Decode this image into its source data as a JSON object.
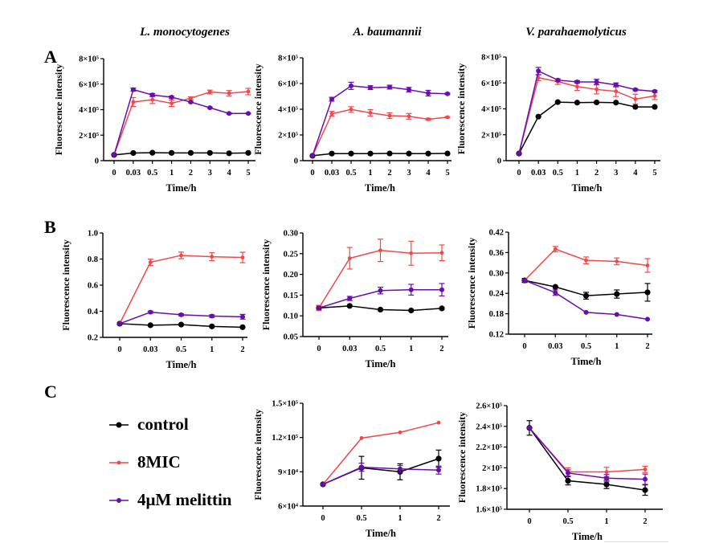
{
  "column_titles": [
    "L. monocytogenes",
    "A. baumannii",
    "V. parahaemolyticus"
  ],
  "panel_letters": [
    "A",
    "B",
    "C"
  ],
  "legend": [
    {
      "label": "control",
      "color": "#000000"
    },
    {
      "label": "8MIC",
      "color": "#F04848"
    },
    {
      "label": "4μM melittin",
      "color": "#6A0DAD"
    }
  ],
  "chart_data": [
    {
      "id": "A1",
      "type": "line",
      "title": "L. monocytogenes",
      "xlabel": "Time/h",
      "ylabel": "Fluorescence intensity",
      "categories": [
        "0",
        "0.03",
        "0.5",
        "1",
        "2",
        "3",
        "4",
        "5"
      ],
      "ylim": [
        0,
        800000
      ],
      "yticks": [
        {
          "v": 0,
          "label": "0"
        },
        {
          "v": 200000,
          "label": "2×10⁵"
        },
        {
          "v": 400000,
          "label": "4×10⁵"
        },
        {
          "v": 600000,
          "label": "6×10⁵"
        },
        {
          "v": 800000,
          "label": "8×10⁵"
        }
      ],
      "series": [
        {
          "name": "control",
          "color": "#000000",
          "values": [
            45000,
            60000,
            62000,
            61000,
            61000,
            61000,
            58000,
            61000
          ],
          "errors": [
            0,
            0,
            0,
            0,
            0,
            0,
            0,
            0
          ]
        },
        {
          "name": "8MIC",
          "color": "#F04848",
          "values": [
            45000,
            460000,
            478000,
            450000,
            490000,
            538000,
            528000,
            542000
          ],
          "errors": [
            0,
            35000,
            30000,
            25000,
            10000,
            15000,
            22000,
            25000
          ]
        },
        {
          "name": "4μM melittin",
          "color": "#6A0DAD",
          "values": [
            45000,
            557000,
            515000,
            498000,
            460000,
            415000,
            370000,
            370000
          ],
          "errors": [
            0,
            12000,
            12000,
            8000,
            6000,
            5000,
            5000,
            3000
          ]
        }
      ]
    },
    {
      "id": "A2",
      "type": "line",
      "title": "A. baumannii",
      "xlabel": "Time/h",
      "ylabel": "Fluorescence intensity",
      "categories": [
        "0",
        "0.03",
        "0.5",
        "1",
        "2",
        "3",
        "4",
        "5"
      ],
      "ylim": [
        0,
        800000
      ],
      "yticks": [
        {
          "v": 0,
          "label": "0"
        },
        {
          "v": 200000,
          "label": "2×10⁵"
        },
        {
          "v": 400000,
          "label": "4×10⁵"
        },
        {
          "v": 600000,
          "label": "6×10⁵"
        },
        {
          "v": 800000,
          "label": "8×10⁵"
        }
      ],
      "series": [
        {
          "name": "control",
          "color": "#000000",
          "values": [
            38000,
            55000,
            55000,
            55000,
            56000,
            55000,
            55000,
            56000
          ],
          "errors": [
            0,
            0,
            0,
            0,
            0,
            0,
            0,
            0
          ]
        },
        {
          "name": "8MIC",
          "color": "#F04848",
          "values": [
            38000,
            365000,
            398000,
            372000,
            350000,
            345000,
            322000,
            338000
          ],
          "errors": [
            0,
            18000,
            22000,
            25000,
            22000,
            22000,
            8000,
            5000
          ]
        },
        {
          "name": "4μM melittin",
          "color": "#6A0DAD",
          "values": [
            38000,
            478000,
            582000,
            568000,
            572000,
            552000,
            525000,
            520000
          ],
          "errors": [
            0,
            15000,
            28000,
            15000,
            15000,
            18000,
            22000,
            5000
          ]
        }
      ]
    },
    {
      "id": "A3",
      "type": "line",
      "title": "V. parahaemolyticus",
      "xlabel": "Time/h",
      "ylabel": "Fluorescence intensity",
      "categories": [
        "0",
        "0.03",
        "0.5",
        "1",
        "2",
        "3",
        "4",
        "5"
      ],
      "ylim": [
        0,
        800000
      ],
      "yticks": [
        {
          "v": 0,
          "label": "0"
        },
        {
          "v": 200000,
          "label": "2×10⁵"
        },
        {
          "v": 400000,
          "label": "4×10⁵"
        },
        {
          "v": 600000,
          "label": "6×10⁵"
        },
        {
          "v": 800000,
          "label": "8×10⁵"
        }
      ],
      "series": [
        {
          "name": "control",
          "color": "#000000",
          "values": [
            55000,
            340000,
            452000,
            448000,
            450000,
            448000,
            415000,
            415000
          ],
          "errors": [
            0,
            0,
            0,
            0,
            0,
            0,
            0,
            0
          ]
        },
        {
          "name": "8MIC",
          "color": "#F04848",
          "values": [
            55000,
            640000,
            610000,
            572000,
            550000,
            535000,
            475000,
            500000
          ],
          "errors": [
            0,
            22000,
            22000,
            30000,
            35000,
            40000,
            38000,
            28000
          ]
        },
        {
          "name": "4μM melittin",
          "color": "#6A0DAD",
          "values": [
            55000,
            692000,
            622000,
            608000,
            608000,
            585000,
            548000,
            535000
          ],
          "errors": [
            0,
            28000,
            10000,
            10000,
            20000,
            15000,
            8000,
            8000
          ]
        }
      ]
    },
    {
      "id": "B1",
      "type": "line",
      "xlabel": "Time/h",
      "ylabel": "Fluorescence intensity",
      "categories": [
        "0",
        "0.03",
        "0.5",
        "1",
        "2"
      ],
      "ylim": [
        0.2,
        1.0
      ],
      "yticks": [
        {
          "v": 0.2,
          "label": "0.2"
        },
        {
          "v": 0.4,
          "label": "0.4"
        },
        {
          "v": 0.6,
          "label": "0.6"
        },
        {
          "v": 0.8,
          "label": "0.8"
        },
        {
          "v": 1.0,
          "label": "1.0"
        }
      ],
      "series": [
        {
          "name": "control",
          "color": "#000000",
          "values": [
            0.305,
            0.293,
            0.298,
            0.284,
            0.278
          ],
          "errors": [
            0,
            0,
            0,
            0,
            0
          ]
        },
        {
          "name": "8MIC",
          "color": "#F04848",
          "values": [
            0.305,
            0.775,
            0.828,
            0.818,
            0.812
          ],
          "errors": [
            0,
            0.025,
            0.025,
            0.03,
            0.04
          ]
        },
        {
          "name": "4μM melittin",
          "color": "#6A0DAD",
          "values": [
            0.305,
            0.393,
            0.373,
            0.363,
            0.358
          ],
          "errors": [
            0,
            0.008,
            0.008,
            0.01,
            0.018
          ]
        }
      ]
    },
    {
      "id": "B2",
      "type": "line",
      "xlabel": "Time/h",
      "ylabel": "Fluorescence intensity",
      "categories": [
        "0",
        "0.03",
        "0.5",
        "1",
        "2"
      ],
      "ylim": [
        0.05,
        0.3
      ],
      "yticks": [
        {
          "v": 0.05,
          "label": "0.05"
        },
        {
          "v": 0.1,
          "label": "0.10"
        },
        {
          "v": 0.15,
          "label": "0.15"
        },
        {
          "v": 0.2,
          "label": "0.20"
        },
        {
          "v": 0.25,
          "label": "0.25"
        },
        {
          "v": 0.3,
          "label": "0.30"
        }
      ],
      "series": [
        {
          "name": "control",
          "color": "#000000",
          "values": [
            0.119,
            0.124,
            0.115,
            0.113,
            0.118
          ],
          "errors": [
            0.006,
            0,
            0,
            0,
            0
          ]
        },
        {
          "name": "8MIC",
          "color": "#F04848",
          "values": [
            0.119,
            0.239,
            0.258,
            0.251,
            0.252
          ],
          "errors": [
            0.006,
            0.026,
            0.027,
            0.029,
            0.019
          ]
        },
        {
          "name": "4μM melittin",
          "color": "#6A0DAD",
          "values": [
            0.119,
            0.142,
            0.161,
            0.163,
            0.163
          ],
          "errors": [
            0,
            0.005,
            0.008,
            0.013,
            0.015
          ]
        }
      ]
    },
    {
      "id": "B3",
      "type": "line",
      "xlabel": "Time/h",
      "ylabel": "Fluorescence intensity",
      "categories": [
        "0",
        "0.03",
        "0.5",
        "1",
        "2"
      ],
      "ylim": [
        0.12,
        0.42
      ],
      "yticks": [
        {
          "v": 0.12,
          "label": "0.12"
        },
        {
          "v": 0.18,
          "label": "0.18"
        },
        {
          "v": 0.24,
          "label": "0.24"
        },
        {
          "v": 0.3,
          "label": "0.30"
        },
        {
          "v": 0.36,
          "label": "0.36"
        },
        {
          "v": 0.42,
          "label": "0.42"
        }
      ],
      "series": [
        {
          "name": "control",
          "color": "#000000",
          "values": [
            0.278,
            0.259,
            0.233,
            0.238,
            0.243
          ],
          "errors": [
            0.006,
            0,
            0.01,
            0.012,
            0.026
          ]
        },
        {
          "name": "8MIC",
          "color": "#F04848",
          "values": [
            0.278,
            0.37,
            0.337,
            0.334,
            0.322
          ],
          "errors": [
            0,
            0.008,
            0.01,
            0.01,
            0.02
          ]
        },
        {
          "name": "4μM melittin",
          "color": "#6A0DAD",
          "values": [
            0.278,
            0.242,
            0.184,
            0.178,
            0.164
          ],
          "errors": [
            0,
            0.008,
            0,
            0,
            0
          ]
        }
      ]
    },
    {
      "id": "C2",
      "type": "line",
      "xlabel": "Time/h",
      "ylabel": "Fluorescence intensity",
      "categories": [
        "0",
        "0.5",
        "1",
        "2"
      ],
      "ylim": [
        60000,
        150000
      ],
      "yticks": [
        {
          "v": 60000,
          "label": "6×10⁴"
        },
        {
          "v": 90000,
          "label": "9×10⁴"
        },
        {
          "v": 120000,
          "label": "1.2×10⁵"
        },
        {
          "v": 150000,
          "label": "1.5×10⁵"
        }
      ],
      "series": [
        {
          "name": "control",
          "color": "#000000",
          "values": [
            79000,
            93500,
            90000,
            101500
          ],
          "errors": [
            0,
            10000,
            7000,
            7500
          ]
        },
        {
          "name": "8MIC",
          "color": "#F04848",
          "values": [
            79000,
            119500,
            124500,
            133000
          ],
          "errors": [
            0,
            0,
            0,
            0
          ]
        },
        {
          "name": "4μM melittin",
          "color": "#6A0DAD",
          "values": [
            79000,
            94000,
            92500,
            91500
          ],
          "errors": [
            0,
            3500,
            3000,
            3500
          ]
        }
      ]
    },
    {
      "id": "C3",
      "type": "line",
      "xlabel": "Time/h",
      "ylabel": "Fluorescence intensity",
      "categories": [
        "0",
        "0.5",
        "1",
        "2"
      ],
      "ylim": [
        160000,
        260000
      ],
      "yticks": [
        {
          "v": 160000,
          "label": "1.6×10⁵"
        },
        {
          "v": 180000,
          "label": "1.8×10⁵"
        },
        {
          "v": 200000,
          "label": "2×10⁵"
        },
        {
          "v": 220000,
          "label": "2.2×10⁵"
        },
        {
          "v": 240000,
          "label": "2.4×10⁵"
        },
        {
          "v": 260000,
          "label": "2.6×10⁵"
        }
      ],
      "series": [
        {
          "name": "control",
          "color": "#000000",
          "values": [
            238500,
            187500,
            184000,
            178500
          ],
          "errors": [
            7000,
            4000,
            4000,
            5000
          ]
        },
        {
          "name": "8MIC",
          "color": "#F04848",
          "values": [
            238500,
            196000,
            196000,
            198500
          ],
          "errors": [
            0,
            4000,
            4500,
            3000
          ]
        },
        {
          "name": "4μM melittin",
          "color": "#6A0DAD",
          "values": [
            238500,
            195000,
            190000,
            189000
          ],
          "errors": [
            0,
            3000,
            3500,
            5000
          ]
        }
      ]
    }
  ]
}
